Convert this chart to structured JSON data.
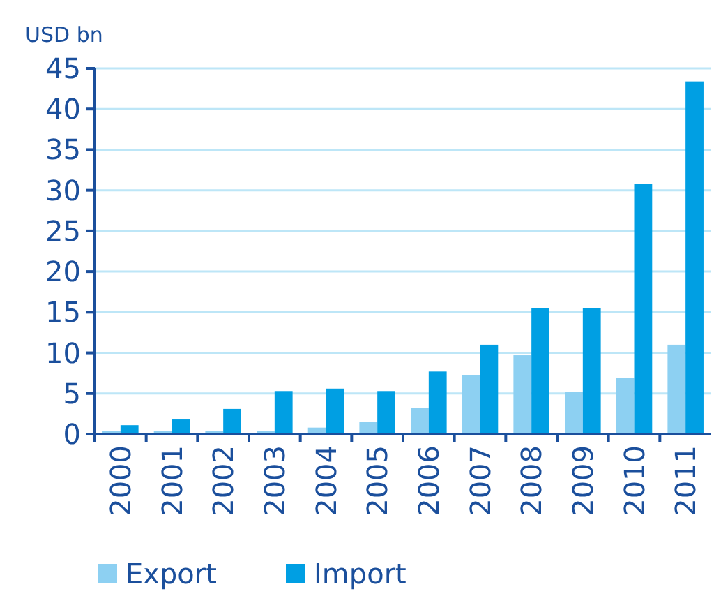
{
  "chart_data": {
    "type": "bar",
    "ylabel": "USD bn",
    "categories": [
      "2000",
      "2001",
      "2002",
      "2003",
      "2004",
      "2005",
      "2006",
      "2007",
      "2008",
      "2009",
      "2010",
      "2011"
    ],
    "series": [
      {
        "name": "Export",
        "color": "#8dd0f2",
        "values": [
          0.4,
          0.4,
          0.4,
          0.4,
          0.8,
          1.5,
          3.2,
          7.3,
          9.7,
          5.2,
          6.9,
          11.0
        ]
      },
      {
        "name": "Import",
        "color": "#009fe3",
        "values": [
          1.1,
          1.8,
          3.1,
          5.3,
          5.6,
          5.3,
          7.7,
          11.0,
          15.5,
          15.5,
          30.8,
          43.4
        ]
      }
    ],
    "ylim": [
      0,
      45
    ],
    "yticks": [
      0,
      5,
      10,
      15,
      20,
      25,
      30,
      35,
      40,
      45
    ],
    "grid": "y",
    "legend": "bottom left"
  }
}
